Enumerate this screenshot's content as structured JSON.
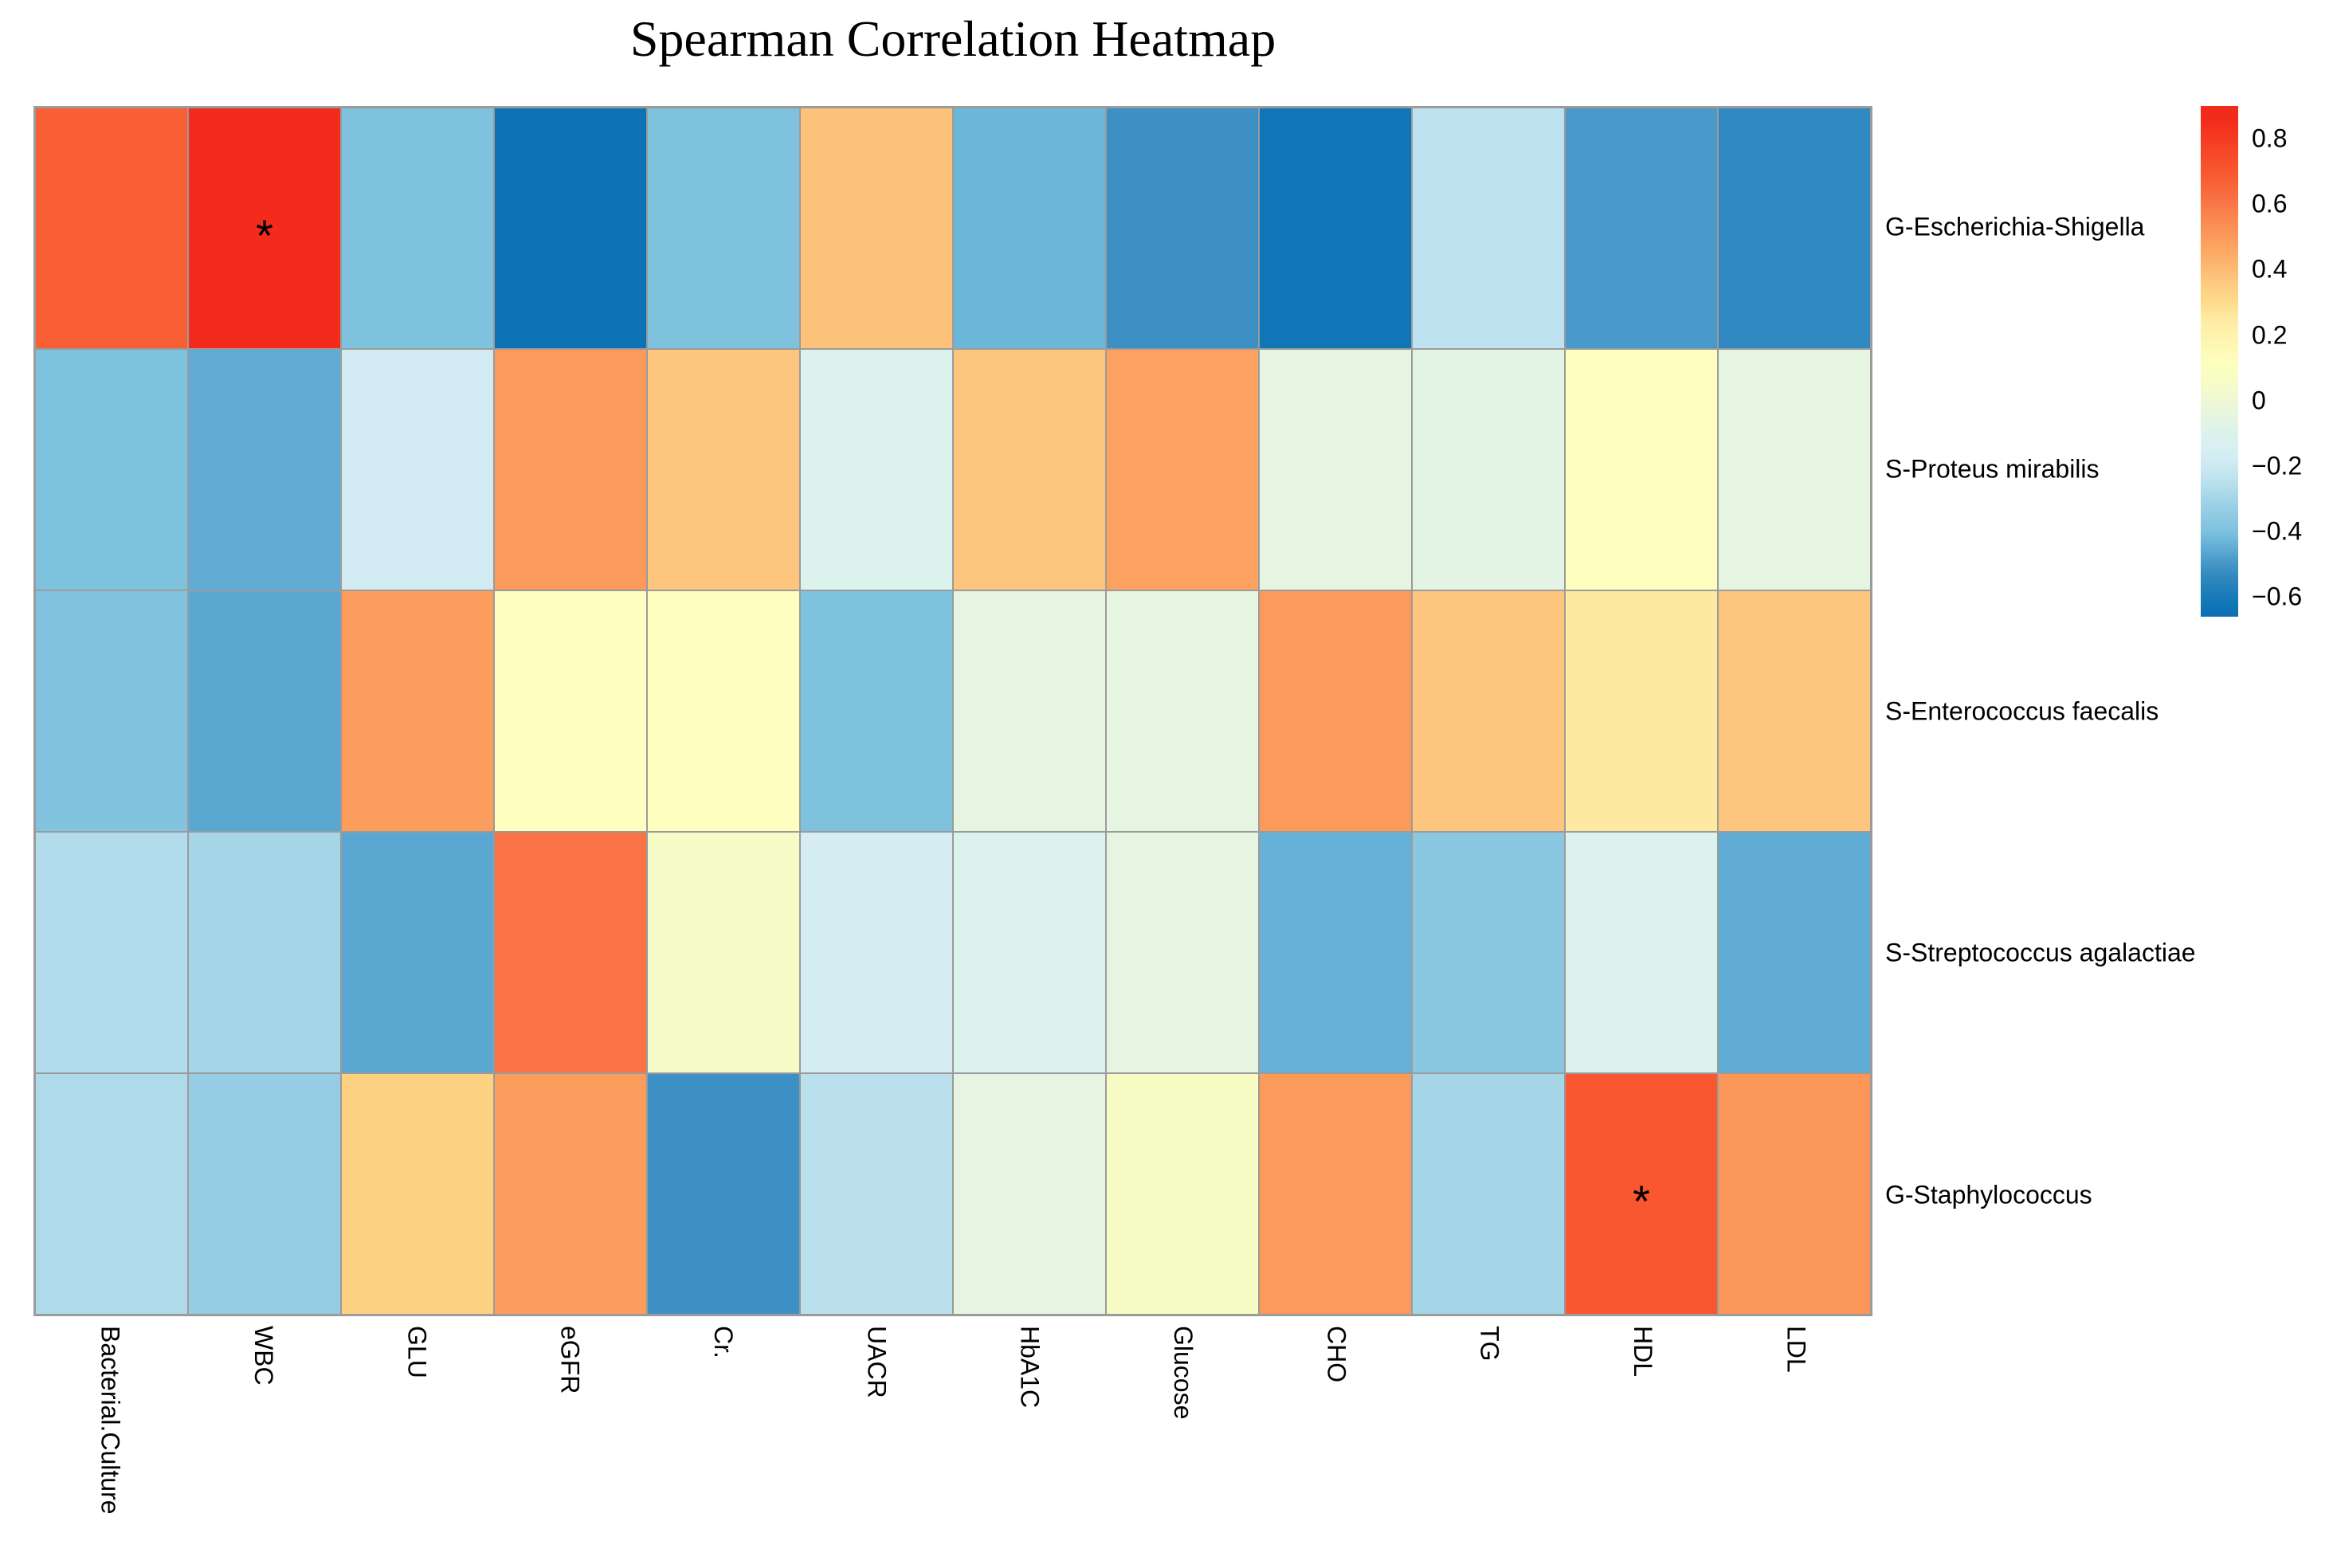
{
  "title": "Spearman Correlation Heatmap",
  "chart_data": {
    "type": "heatmap",
    "title": "Spearman Correlation Heatmap",
    "columns": [
      "Bacterial.Culture",
      "WBC",
      "GLU",
      "eGFR",
      "Cr.",
      "UACR",
      "HbA1C",
      "Glucose",
      "CHO",
      "TG",
      "HDL",
      "LDL"
    ],
    "rows": [
      "G-Escherichia-Shigella",
      "S-Proteus mirabilis",
      "S-Enterococcus faecalis",
      "S-Streptococcus agalactiae",
      "G-Staphylococcus"
    ],
    "values": [
      [
        0.67,
        0.86,
        -0.4,
        -0.64,
        -0.4,
        0.38,
        -0.43,
        -0.51,
        -0.62,
        -0.24,
        -0.49,
        -0.54
      ],
      [
        -0.4,
        -0.45,
        -0.18,
        0.5,
        0.37,
        -0.1,
        0.37,
        0.48,
        -0.05,
        -0.06,
        0.11,
        -0.05
      ],
      [
        -0.39,
        -0.46,
        0.49,
        0.11,
        0.11,
        -0.4,
        -0.05,
        -0.05,
        0.5,
        0.37,
        0.26,
        0.37
      ],
      [
        -0.27,
        -0.3,
        -0.46,
        0.61,
        0.05,
        -0.16,
        -0.1,
        -0.05,
        -0.44,
        -0.37,
        -0.1,
        -0.45
      ],
      [
        -0.28,
        -0.33,
        0.34,
        0.49,
        -0.51,
        -0.25,
        -0.05,
        0.06,
        0.5,
        -0.3,
        0.7,
        0.51
      ]
    ],
    "significance_marker": "*",
    "significant_cells": [
      {
        "row": 0,
        "col": 1
      },
      {
        "row": 4,
        "col": 10
      }
    ],
    "grid_line_color": "#9b9b9b",
    "legend_position": "right",
    "colorbar": {
      "tick_labels": [
        "0.8",
        "0.6",
        "0.4",
        "0.2",
        "0",
        "−0.2",
        "−0.4",
        "−0.6"
      ],
      "tick_values": [
        0.8,
        0.6,
        0.4,
        0.2,
        0,
        -0.2,
        -0.4,
        -0.6
      ],
      "bar_max": 0.9,
      "bar_min": -0.66
    },
    "colormap_stops": [
      [
        -0.66,
        "#0a70b3"
      ],
      [
        -0.62,
        "#1176b7"
      ],
      [
        -0.55,
        "#2c85be"
      ],
      [
        -0.51,
        "#3d90c4"
      ],
      [
        -0.47,
        "#55a4cf"
      ],
      [
        -0.45,
        "#60acd4"
      ],
      [
        -0.43,
        "#6cb6d9"
      ],
      [
        -0.4,
        "#7ec2de"
      ],
      [
        -0.37,
        "#8ac7e1"
      ],
      [
        -0.33,
        "#96cde4"
      ],
      [
        -0.3,
        "#a5d6e8"
      ],
      [
        -0.28,
        "#aedaea"
      ],
      [
        -0.25,
        "#bae0ee"
      ],
      [
        -0.2,
        "#cde8f2"
      ],
      [
        -0.16,
        "#d6eef3"
      ],
      [
        -0.12,
        "#daf1ef"
      ],
      [
        -0.08,
        "#def2e9"
      ],
      [
        -0.05,
        "#e6f5e2"
      ],
      [
        0.0,
        "#eef8d5"
      ],
      [
        0.06,
        "#f7fcc5"
      ],
      [
        0.11,
        "#feffbf"
      ],
      [
        0.18,
        "#fef5b2"
      ],
      [
        0.26,
        "#fee9a0"
      ],
      [
        0.3,
        "#fdda8b"
      ],
      [
        0.34,
        "#fdd182"
      ],
      [
        0.37,
        "#fdc57d"
      ],
      [
        0.42,
        "#fcb56e"
      ],
      [
        0.46,
        "#fca762"
      ],
      [
        0.5,
        "#fb9a5b"
      ],
      [
        0.55,
        "#fa8951"
      ],
      [
        0.61,
        "#f97344"
      ],
      [
        0.66,
        "#f86237"
      ],
      [
        0.7,
        "#f8572f"
      ],
      [
        0.76,
        "#f64727"
      ],
      [
        0.8,
        "#f43a22"
      ],
      [
        0.86,
        "#f22b1d"
      ]
    ]
  }
}
